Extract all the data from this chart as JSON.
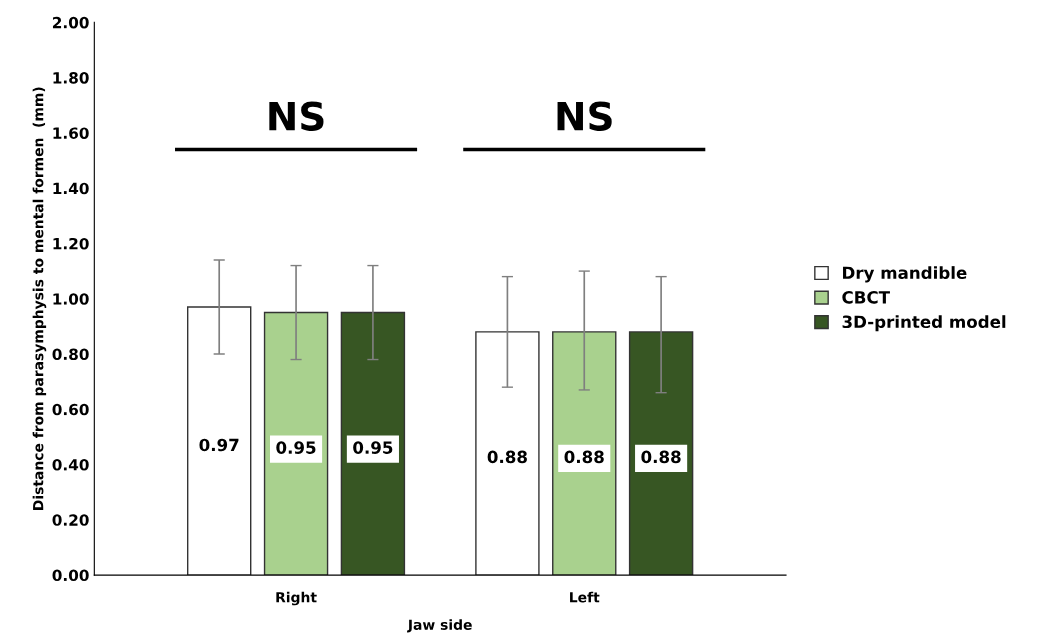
{
  "chart_data": {
    "type": "bar",
    "xlabel": "Jaw side",
    "ylabel": "Distance from parasymphysis to mental formen  (mm)",
    "categories": [
      "Right",
      "Left"
    ],
    "series": [
      {
        "name": "Dry mandible",
        "color": "#ffffff",
        "values": [
          0.97,
          0.88
        ],
        "errors": [
          [
            0.8,
            1.14
          ],
          [
            0.68,
            1.08
          ]
        ]
      },
      {
        "name": "CBCT",
        "color": "#a9d18e",
        "values": [
          0.95,
          0.88
        ],
        "errors": [
          [
            0.78,
            1.12
          ],
          [
            0.67,
            1.1
          ]
        ]
      },
      {
        "name": "3D-printed model",
        "color": "#375623",
        "values": [
          0.95,
          0.88
        ],
        "errors": [
          [
            0.78,
            1.12
          ],
          [
            0.66,
            1.08
          ]
        ]
      }
    ],
    "annotations": [
      "NS",
      "NS"
    ],
    "data_labels": true,
    "ylim": [
      0,
      2
    ],
    "yticks": [
      {
        "value": 0,
        "label": "0.00"
      },
      {
        "value": 0.2,
        "label": "0.20"
      },
      {
        "value": 0.4,
        "label": "0.40"
      },
      {
        "value": 0.6,
        "label": "0.60"
      },
      {
        "value": 0.8,
        "label": "0.80"
      },
      {
        "value": 1.0,
        "label": "1.00"
      },
      {
        "value": 1.2,
        "label": "1.20"
      },
      {
        "value": 1.4,
        "label": "1.40"
      },
      {
        "value": 1.6,
        "label": "1.60"
      },
      {
        "value": 1.8,
        "label": "1.80"
      },
      {
        "value": 2.0,
        "label": "2.00"
      }
    ],
    "grid": false,
    "legend": "right"
  }
}
